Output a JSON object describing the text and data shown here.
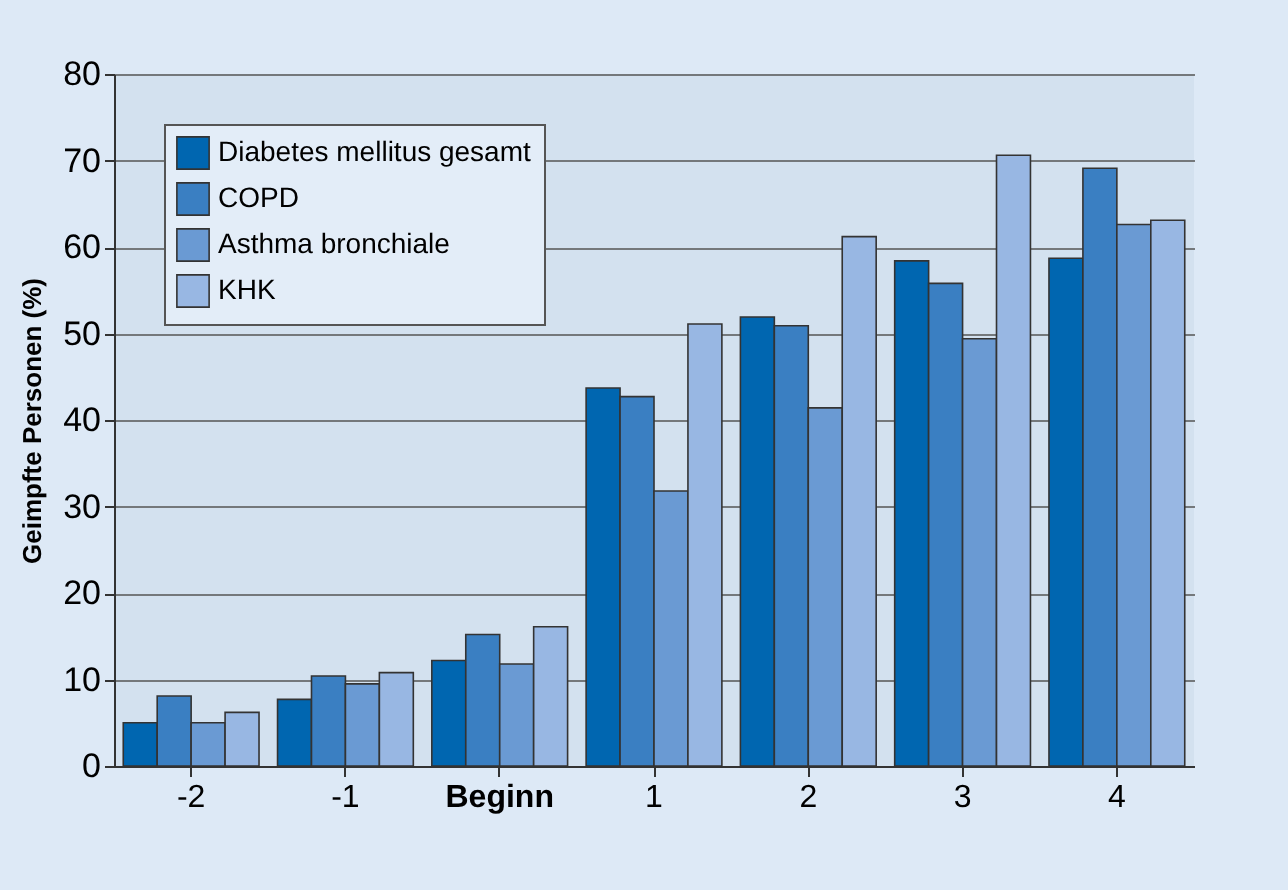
{
  "chart_data": {
    "type": "bar",
    "ylabel": "Geimpfte Personen (%)",
    "categories": [
      "-2",
      "-1",
      "Beginn",
      "1",
      "2",
      "3",
      "4"
    ],
    "series": [
      {
        "name": "Diabetes mellitus gesamt",
        "color": "#0066b0",
        "values": [
          5.0,
          7.7,
          12.2,
          43.7,
          51.9,
          58.4,
          58.7
        ]
      },
      {
        "name": "COPD",
        "color": "#3a7fc2",
        "values": [
          8.1,
          10.4,
          15.2,
          42.7,
          50.9,
          55.8,
          69.1
        ]
      },
      {
        "name": "Asthma bronchiale",
        "color": "#6a9ad3",
        "values": [
          5.0,
          9.5,
          11.8,
          31.8,
          41.4,
          49.4,
          62.6
        ]
      },
      {
        "name": "KHK",
        "color": "#98b7e3",
        "values": [
          6.2,
          10.8,
          16.1,
          51.1,
          61.2,
          70.6,
          63.1
        ]
      }
    ],
    "ylim": [
      0,
      80
    ],
    "yticks": [
      0,
      10,
      20,
      30,
      40,
      50,
      60,
      70,
      80
    ],
    "grid": "y",
    "legend": "top left"
  }
}
